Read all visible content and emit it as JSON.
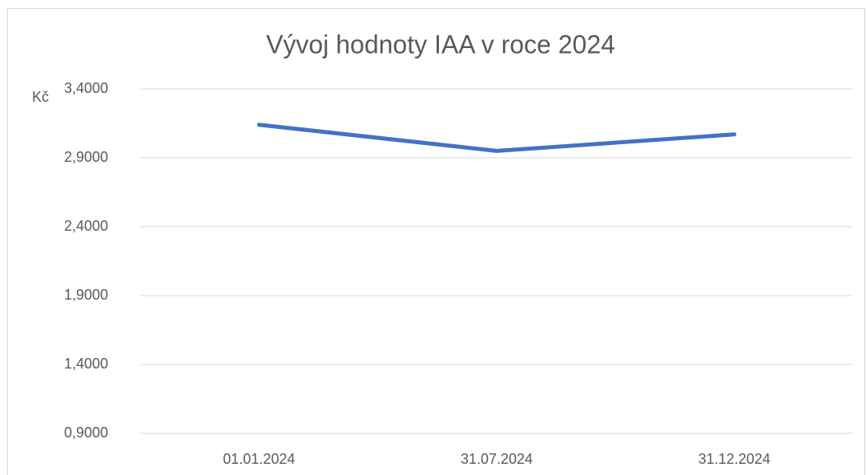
{
  "chart_data": {
    "type": "line",
    "title": "Vývoj hodnoty IAA v roce 2024",
    "y_unit": "Kč",
    "categories": [
      "01.01.2024",
      "31.07.2024",
      "31.12.2024"
    ],
    "values": [
      3.14,
      2.95,
      3.07
    ],
    "color": "#4472c4",
    "ylim": [
      0.9,
      3.4
    ],
    "yticks": [
      {
        "value": 0.9,
        "label": "0,9000"
      },
      {
        "value": 1.4,
        "label": "1,4000"
      },
      {
        "value": 1.9,
        "label": "1,9000"
      },
      {
        "value": 2.4,
        "label": "2,4000"
      },
      {
        "value": 2.9,
        "label": "2,9000"
      },
      {
        "value": 3.4,
        "label": "3,4000"
      }
    ],
    "grid": true
  }
}
